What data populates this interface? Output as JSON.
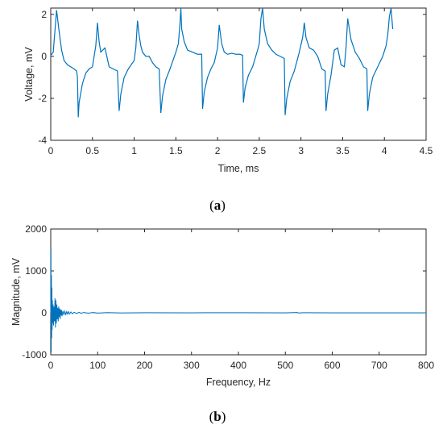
{
  "chart_data": [
    {
      "type": "line",
      "caption_letter": "a",
      "xlabel": "Time, ms",
      "ylabel": "Voltage, mV",
      "xlim": [
        0,
        4.5
      ],
      "ylim": [
        -4,
        2.3
      ],
      "xticks": [
        0,
        0.5,
        1,
        1.5,
        2,
        2.5,
        3,
        3.5,
        4,
        4.5
      ],
      "yticks": [
        -4,
        -2,
        0,
        2
      ],
      "grid": false,
      "line_color": "#0072BD",
      "cycle_period": 0.5,
      "series": [
        {
          "name": "",
          "x": [
            0,
            0.03,
            0.07,
            0.1,
            0.13,
            0.16,
            0.2,
            0.24,
            0.28,
            0.31,
            0.32,
            0.33,
            0.34,
            0.38,
            0.42,
            0.46,
            0.5,
            0.54,
            0.56,
            0.58,
            0.6,
            0.65,
            0.7,
            0.75,
            0.8,
            0.82,
            0.84,
            0.88,
            0.93,
            1.0,
            1.02,
            1.04,
            1.06,
            1.08,
            1.1,
            1.14,
            1.18,
            1.22,
            1.26,
            1.3,
            1.32,
            1.34,
            1.38,
            1.43,
            1.5,
            1.53,
            1.55,
            1.56,
            1.57,
            1.6,
            1.64,
            1.7,
            1.76,
            1.81,
            1.82,
            1.84,
            1.88,
            1.92,
            1.96,
            2.0,
            2.02,
            2.05,
            2.08,
            2.12,
            2.17,
            2.22,
            2.27,
            2.3,
            2.31,
            2.33,
            2.37,
            2.42,
            2.48,
            2.5,
            2.52,
            2.54,
            2.56,
            2.6,
            2.65,
            2.7,
            2.75,
            2.8,
            2.81,
            2.83,
            2.87,
            2.92,
            2.98,
            3.02,
            3.04,
            3.06,
            3.1,
            3.15,
            3.2,
            3.25,
            3.29,
            3.3,
            3.32,
            3.36,
            3.4,
            3.44,
            3.48,
            3.52,
            3.54,
            3.56,
            3.6,
            3.65,
            3.7,
            3.75,
            3.79,
            3.8,
            3.82,
            3.86,
            3.92,
            3.98,
            4.02,
            4.04,
            4.06,
            4.08,
            4.1
          ],
          "y": [
            0.05,
            0.2,
            2.2,
            1.2,
            0.3,
            -0.2,
            -0.4,
            -0.5,
            -0.6,
            -0.7,
            -1.0,
            -2.9,
            -2.2,
            -1.3,
            -0.8,
            -0.6,
            -0.5,
            0.5,
            1.6,
            0.7,
            0.2,
            0.4,
            -0.5,
            -0.6,
            -0.7,
            -2.6,
            -1.8,
            -1.0,
            -0.6,
            -0.2,
            0.4,
            1.7,
            1.0,
            0.5,
            0.2,
            0.0,
            0.0,
            -0.3,
            -0.5,
            -0.6,
            -2.7,
            -1.9,
            -1.1,
            -0.6,
            0.2,
            0.6,
            1.6,
            2.3,
            1.3,
            0.7,
            0.3,
            0.2,
            0.1,
            0.1,
            -2.5,
            -1.7,
            -1.0,
            -0.6,
            -0.3,
            0.4,
            1.5,
            0.6,
            0.2,
            0.1,
            0.15,
            0.1,
            0.1,
            0.05,
            -2.2,
            -1.5,
            -0.9,
            -0.5,
            0.3,
            0.6,
            1.8,
            2.3,
            1.3,
            0.6,
            0.3,
            0.1,
            0.0,
            -0.1,
            -2.8,
            -2.0,
            -1.2,
            -0.7,
            0.2,
            0.9,
            1.6,
            0.9,
            0.4,
            0.3,
            0.0,
            -0.6,
            -0.7,
            -2.6,
            -1.8,
            -0.9,
            0.3,
            0.4,
            -0.4,
            -0.5,
            0.4,
            1.8,
            0.8,
            0.2,
            -0.1,
            -0.5,
            -0.6,
            -2.6,
            -1.8,
            -1.0,
            -0.5,
            0.0,
            0.5,
            1.0,
            1.9,
            2.3,
            1.3
          ]
        }
      ]
    },
    {
      "type": "line",
      "caption_letter": "b",
      "xlabel": "Frequency, Hz",
      "ylabel": "Magnitude, mV",
      "xlim": [
        0,
        800
      ],
      "ylim": [
        -1000,
        2000
      ],
      "xticks": [
        0,
        100,
        200,
        300,
        400,
        500,
        600,
        700,
        800
      ],
      "yticks": [
        -1000,
        0,
        1000,
        2000
      ],
      "grid": false,
      "line_color": "#0072BD",
      "series": [
        {
          "name": "",
          "x": [
            0,
            0.5,
            1,
            1.5,
            2,
            2.5,
            3,
            3.5,
            4,
            5,
            6,
            7,
            8,
            9,
            10,
            11,
            12,
            13,
            14,
            15,
            16,
            17,
            18,
            19,
            20,
            21,
            22,
            23,
            24,
            26,
            28,
            30,
            32,
            34,
            36,
            38,
            40,
            43,
            46,
            50,
            55,
            60,
            65,
            70,
            80,
            90,
            100,
            120,
            150,
            200,
            300,
            400,
            500,
            525,
            530,
            535,
            600,
            700,
            800
          ],
          "y": [
            0,
            1550,
            -950,
            900,
            -600,
            600,
            -400,
            300,
            -250,
            200,
            -300,
            150,
            -200,
            350,
            -350,
            300,
            -250,
            200,
            -150,
            120,
            -200,
            150,
            -100,
            100,
            -150,
            80,
            -60,
            70,
            -80,
            50,
            -50,
            40,
            -40,
            30,
            -30,
            30,
            -25,
            20,
            -20,
            15,
            -15,
            12,
            -10,
            8,
            -8,
            6,
            -5,
            4,
            -3,
            2,
            1,
            2,
            1,
            8,
            -5,
            3,
            1,
            1,
            0
          ]
        }
      ]
    }
  ]
}
